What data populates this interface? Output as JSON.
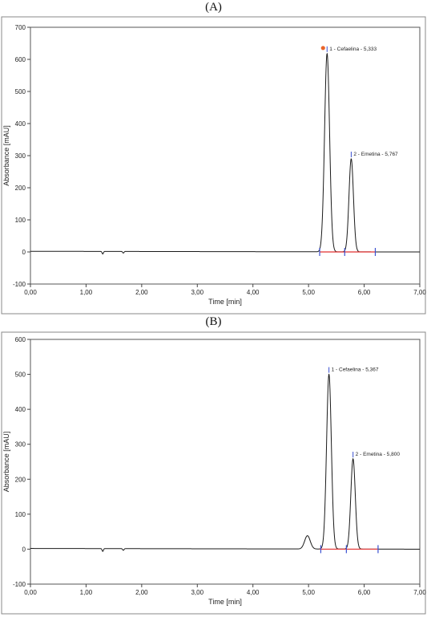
{
  "panel_labels": [
    "(A)",
    "(B)"
  ],
  "chart_data": [
    {
      "type": "line",
      "panel": "(A)",
      "xlabel": "Time [min]",
      "ylabel": "Absorbance [mAU]",
      "xlim": [
        0,
        7
      ],
      "ylim": [
        -100,
        700
      ],
      "x_ticks": [
        0,
        1,
        2,
        3,
        4,
        5,
        6,
        7
      ],
      "x_tick_labels": [
        "0,00",
        "1,00",
        "2,00",
        "3,00",
        "4,00",
        "5,00",
        "6,00",
        "7,00"
      ],
      "y_ticks": [
        -100,
        0,
        100,
        200,
        300,
        400,
        500,
        600,
        700
      ],
      "y_tick_labels": [
        "-100",
        "0",
        "100",
        "200",
        "300",
        "400",
        "500",
        "600",
        "700"
      ],
      "grid": false,
      "baseline_noise": [
        {
          "x": 1.3,
          "y": -8
        },
        {
          "x": 1.67,
          "y": -5
        }
      ],
      "peaks": [
        {
          "label": "1 - Cefaelina - 5,333",
          "rt": 5.333,
          "height": 618,
          "width": 0.045
        },
        {
          "label": "2 - Emetina - 5,767",
          "rt": 5.767,
          "height": 290,
          "width": 0.04
        }
      ],
      "integration_baseline": [
        5.2,
        6.2
      ],
      "integration_marks": [
        5.2,
        5.65,
        6.2
      ],
      "colors": {
        "trace": "#1a1a1a",
        "baseline": "#e23030",
        "marks": "#3a4fd0"
      }
    },
    {
      "type": "line",
      "panel": "(B)",
      "xlabel": "Time [min]",
      "ylabel": "Absorbance [mAU]",
      "xlim": [
        0,
        7
      ],
      "ylim": [
        -100,
        600
      ],
      "x_ticks": [
        0,
        1,
        2,
        3,
        4,
        5,
        6,
        7
      ],
      "x_tick_labels": [
        "0,00",
        "1,00",
        "2,00",
        "3,00",
        "4,00",
        "5,00",
        "6,00",
        "7,00"
      ],
      "y_ticks": [
        -100,
        0,
        100,
        200,
        300,
        400,
        500,
        600
      ],
      "y_tick_labels": [
        "-100",
        "0",
        "100",
        "200",
        "300",
        "400",
        "500",
        "600"
      ],
      "grid": false,
      "baseline_noise": [
        {
          "x": 1.3,
          "y": -8
        },
        {
          "x": 1.67,
          "y": -5
        }
      ],
      "minor_peak": {
        "rt": 4.98,
        "height": 38,
        "width": 0.05
      },
      "peaks": [
        {
          "label": "1 - Cefaelina - 5,367",
          "rt": 5.367,
          "height": 500,
          "width": 0.043
        },
        {
          "label": "2 - Emetina - 5,800",
          "rt": 5.8,
          "height": 258,
          "width": 0.04
        }
      ],
      "integration_baseline": [
        5.2,
        6.25
      ],
      "integration_marks": [
        5.22,
        5.68,
        6.25
      ],
      "colors": {
        "trace": "#1a1a1a",
        "baseline": "#e23030",
        "marks": "#3a4fd0"
      }
    }
  ]
}
